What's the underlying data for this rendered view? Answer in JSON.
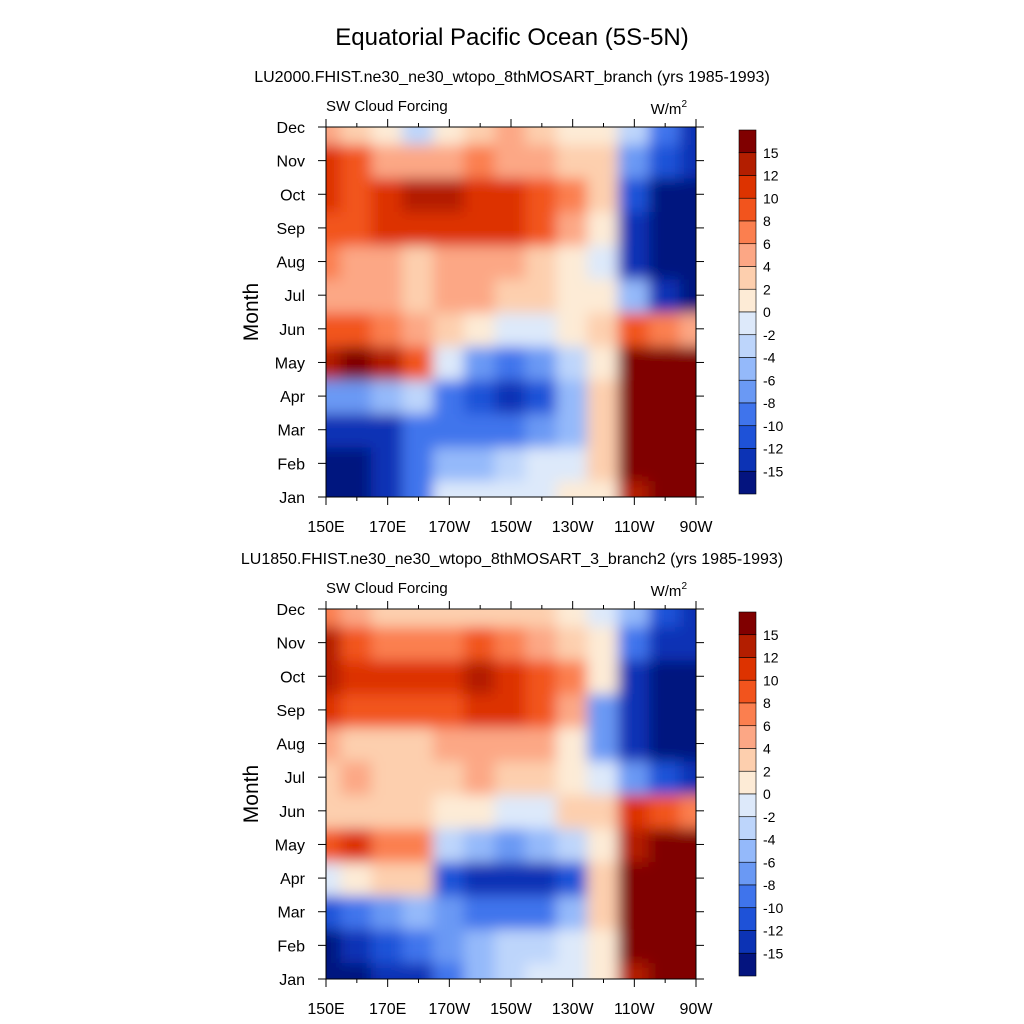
{
  "figure": {
    "title": "Equatorial Pacific Ocean (5S-5N)"
  },
  "colorbar": {
    "labels": [
      "15",
      "12",
      "10",
      "8",
      "6",
      "4",
      "2",
      "0",
      "-2",
      "-4",
      "-6",
      "-8",
      "-10",
      "-12",
      "-15"
    ],
    "colors": [
      "#800000",
      "#b31e00",
      "#dd3300",
      "#f2541d",
      "#fb7f4f",
      "#fca785",
      "#fdcfae",
      "#fdebd6",
      "#dde9fa",
      "#bdd5fb",
      "#94b9fa",
      "#6a99f4",
      "#3f74ec",
      "#1e52d8",
      "#0c33b5",
      "#04147f"
    ]
  },
  "chart_data": [
    {
      "type": "heatmap",
      "title": "LU2000.FHIST.ne30_ne30_wtopo_8thMOSART_branch (yrs 1985-1993)",
      "left_string": "SW Cloud Forcing",
      "right_string": "W/m",
      "right_string_sup": "2",
      "ylabel": "Month",
      "xlabel": "",
      "x_ticks": [
        "150E",
        "170E",
        "170W",
        "150W",
        "130W",
        "110W",
        "90W"
      ],
      "x_tick_values": [
        150,
        170,
        190,
        210,
        230,
        250,
        270
      ],
      "xlim": [
        150,
        270
      ],
      "y_ticks": [
        "Jan",
        "Feb",
        "Mar",
        "Apr",
        "May",
        "Jun",
        "Jul",
        "Aug",
        "Sep",
        "Oct",
        "Nov",
        "Dec"
      ],
      "ylim": [
        1,
        12
      ],
      "units": "W/m2",
      "levels": [
        -15,
        -12,
        -10,
        -8,
        -6,
        -4,
        -2,
        0,
        2,
        4,
        6,
        8,
        10,
        12,
        15
      ],
      "x": [
        150,
        160,
        170,
        180,
        190,
        200,
        210,
        220,
        230,
        240,
        250,
        260,
        270
      ],
      "months": [
        "Jan",
        "Feb",
        "Mar",
        "Apr",
        "May",
        "Jun",
        "Jul",
        "Aug",
        "Sep",
        "Oct",
        "Nov",
        "Dec"
      ],
      "z": [
        [
          -16,
          -16,
          -15,
          -10,
          -2,
          -2,
          -1,
          -1,
          0,
          1,
          14,
          17,
          17
        ],
        [
          -16,
          -16,
          -14,
          -10,
          -6,
          -5,
          -3,
          -2,
          -1,
          2,
          16,
          18,
          18
        ],
        [
          -15,
          -15,
          -13,
          -9,
          -10,
          -10,
          -9,
          -8,
          -5,
          3,
          17,
          18,
          18
        ],
        [
          -8,
          -7,
          -5,
          -3,
          -10,
          -12,
          -14,
          -12,
          -6,
          2,
          16,
          18,
          18
        ],
        [
          14,
          15,
          14,
          8,
          -2,
          -8,
          -9,
          -7,
          -3,
          1,
          15,
          17,
          17
        ],
        [
          9,
          8,
          6,
          4,
          2,
          0,
          -2,
          -2,
          0,
          2,
          8,
          6,
          4
        ],
        [
          5,
          5,
          4,
          3,
          5,
          4,
          3,
          2,
          1,
          0,
          -6,
          -14,
          -16
        ],
        [
          6,
          5,
          4,
          2,
          5,
          5,
          4,
          3,
          1,
          -2,
          -15,
          -17,
          -17
        ],
        [
          8,
          9,
          10,
          10,
          10,
          10,
          10,
          9,
          5,
          0,
          -15,
          -17,
          -17
        ],
        [
          10,
          9,
          11,
          12,
          12,
          11,
          10,
          8,
          6,
          2,
          -12,
          -16,
          -16
        ],
        [
          11,
          8,
          5,
          4,
          4,
          6,
          5,
          4,
          3,
          2,
          -8,
          -12,
          -14
        ],
        [
          4,
          2,
          0,
          -3,
          0,
          2,
          4,
          3,
          1,
          0,
          -4,
          -10,
          -14
        ]
      ]
    },
    {
      "type": "heatmap",
      "title": "LU1850.FHIST.ne30_ne30_wtopo_8thMOSART_3_branch2 (yrs 1985-1993)",
      "left_string": "SW Cloud Forcing",
      "right_string": "W/m",
      "right_string_sup": "2",
      "ylabel": "Month",
      "xlabel": "",
      "x_ticks": [
        "150E",
        "170E",
        "170W",
        "150W",
        "130W",
        "110W",
        "90W"
      ],
      "x_tick_values": [
        150,
        170,
        190,
        210,
        230,
        250,
        270
      ],
      "xlim": [
        150,
        270
      ],
      "y_ticks": [
        "Jan",
        "Feb",
        "Mar",
        "Apr",
        "May",
        "Jun",
        "Jul",
        "Aug",
        "Sep",
        "Oct",
        "Nov",
        "Dec"
      ],
      "ylim": [
        1,
        12
      ],
      "units": "W/m2",
      "levels": [
        -15,
        -12,
        -10,
        -8,
        -6,
        -4,
        -2,
        0,
        2,
        4,
        6,
        8,
        10,
        12,
        15
      ],
      "x": [
        150,
        160,
        170,
        180,
        190,
        200,
        210,
        220,
        230,
        240,
        250,
        260,
        270
      ],
      "months": [
        "Jan",
        "Feb",
        "Mar",
        "Apr",
        "May",
        "Jun",
        "Jul",
        "Aug",
        "Sep",
        "Oct",
        "Nov",
        "Dec"
      ],
      "z": [
        [
          -16,
          -16,
          -15,
          -14,
          -9,
          -5,
          -4,
          -2,
          -1,
          0,
          14,
          17,
          17
        ],
        [
          -16,
          -15,
          -12,
          -10,
          -7,
          -5,
          -4,
          -4,
          -1,
          1,
          16,
          18,
          18
        ],
        [
          -12,
          -10,
          -8,
          -5,
          -8,
          -9,
          -10,
          -9,
          -6,
          2,
          17,
          18,
          18
        ],
        [
          -2,
          0,
          2,
          3,
          -11,
          -13,
          -14,
          -13,
          -11,
          2,
          16,
          18,
          18
        ],
        [
          8,
          10,
          7,
          6,
          -4,
          -6,
          -7,
          -6,
          -3,
          1,
          14,
          17,
          17
        ],
        [
          2,
          2,
          3,
          2,
          1,
          0,
          -2,
          -1,
          2,
          3,
          10,
          9,
          6
        ],
        [
          3,
          4,
          3,
          3,
          3,
          4,
          3,
          2,
          1,
          -2,
          -8,
          -12,
          -14
        ],
        [
          4,
          3,
          3,
          3,
          4,
          5,
          5,
          4,
          0,
          -8,
          -15,
          -17,
          -17
        ],
        [
          10,
          9,
          8,
          8,
          9,
          10,
          11,
          8,
          4,
          -7,
          -15,
          -17,
          -17
        ],
        [
          12,
          11,
          11,
          11,
          11,
          12,
          10,
          8,
          6,
          0,
          -14,
          -16,
          -16
        ],
        [
          14,
          9,
          7,
          6,
          6,
          8,
          7,
          5,
          3,
          1,
          -10,
          -14,
          -15
        ],
        [
          6,
          4,
          3,
          2,
          3,
          3,
          3,
          2,
          1,
          -1,
          -6,
          -12,
          -14
        ]
      ]
    }
  ]
}
